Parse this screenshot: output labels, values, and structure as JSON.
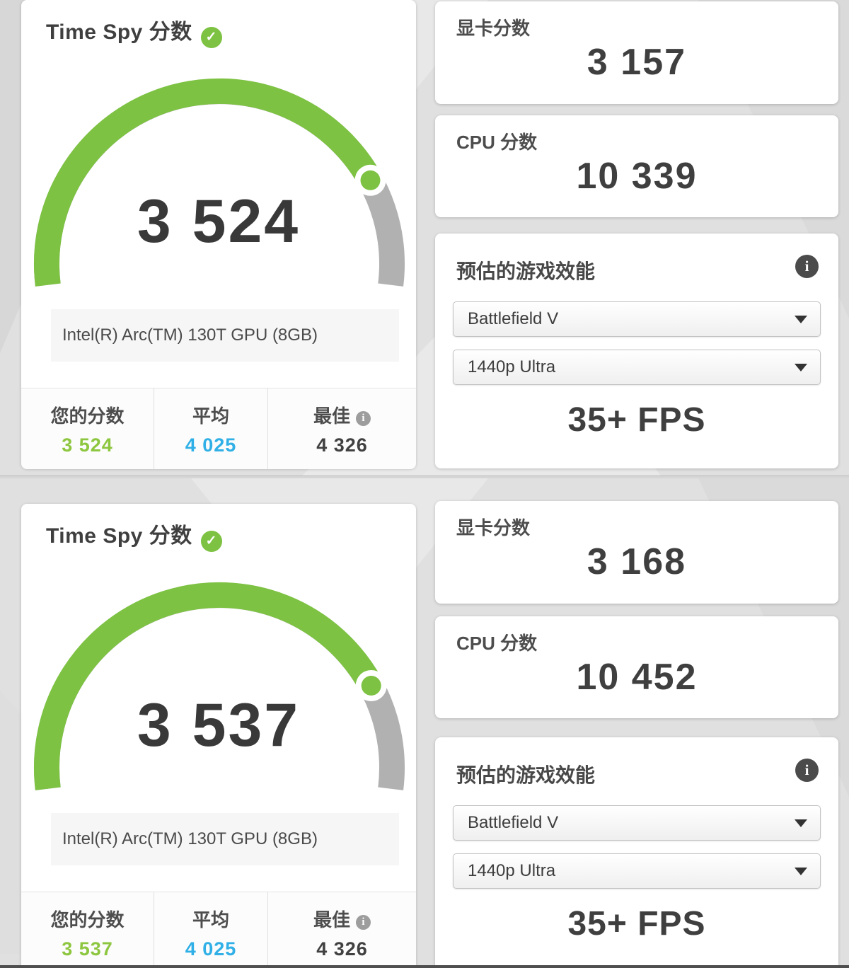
{
  "colors": {
    "accent_green": "#7dc242",
    "value_green": "#8dc63f",
    "value_blue": "#30b0e6",
    "value_dark": "#414141",
    "arc_gray": "#b1b1b1"
  },
  "results": [
    {
      "title": "Time Spy 分数",
      "check_icon": "✓",
      "score": "3 524",
      "gpu_name": "Intel(R) Arc(TM) 130T GPU (8GB)",
      "gauge": {
        "value": 3524,
        "max": 4326
      },
      "footer": {
        "your_label": "您的分数",
        "your_value": "3 524",
        "avg_label": "平均",
        "avg_value": "4 025",
        "best_label": "最佳",
        "best_value": "4 326",
        "best_info_icon": "i"
      },
      "graphics": {
        "label": "显卡分数",
        "value": "3 157"
      },
      "cpu": {
        "label": "CPU 分数",
        "value": "10 339"
      },
      "game_perf": {
        "title": "预估的游戏效能",
        "info_icon": "i",
        "game": "Battlefield V",
        "preset": "1440p Ultra",
        "fps": "35+ FPS"
      }
    },
    {
      "title": "Time Spy 分数",
      "check_icon": "✓",
      "score": "3 537",
      "gpu_name": "Intel(R) Arc(TM) 130T GPU (8GB)",
      "gauge": {
        "value": 3537,
        "max": 4326
      },
      "footer": {
        "your_label": "您的分数",
        "your_value": "3 537",
        "avg_label": "平均",
        "avg_value": "4 025",
        "best_label": "最佳",
        "best_value": "4 326",
        "best_info_icon": "i"
      },
      "graphics": {
        "label": "显卡分数",
        "value": "3 168"
      },
      "cpu": {
        "label": "CPU 分数",
        "value": "10 452"
      },
      "game_perf": {
        "title": "预估的游戏效能",
        "info_icon": "i",
        "game": "Battlefield V",
        "preset": "1440p Ultra",
        "fps": "35+ FPS"
      }
    }
  ]
}
